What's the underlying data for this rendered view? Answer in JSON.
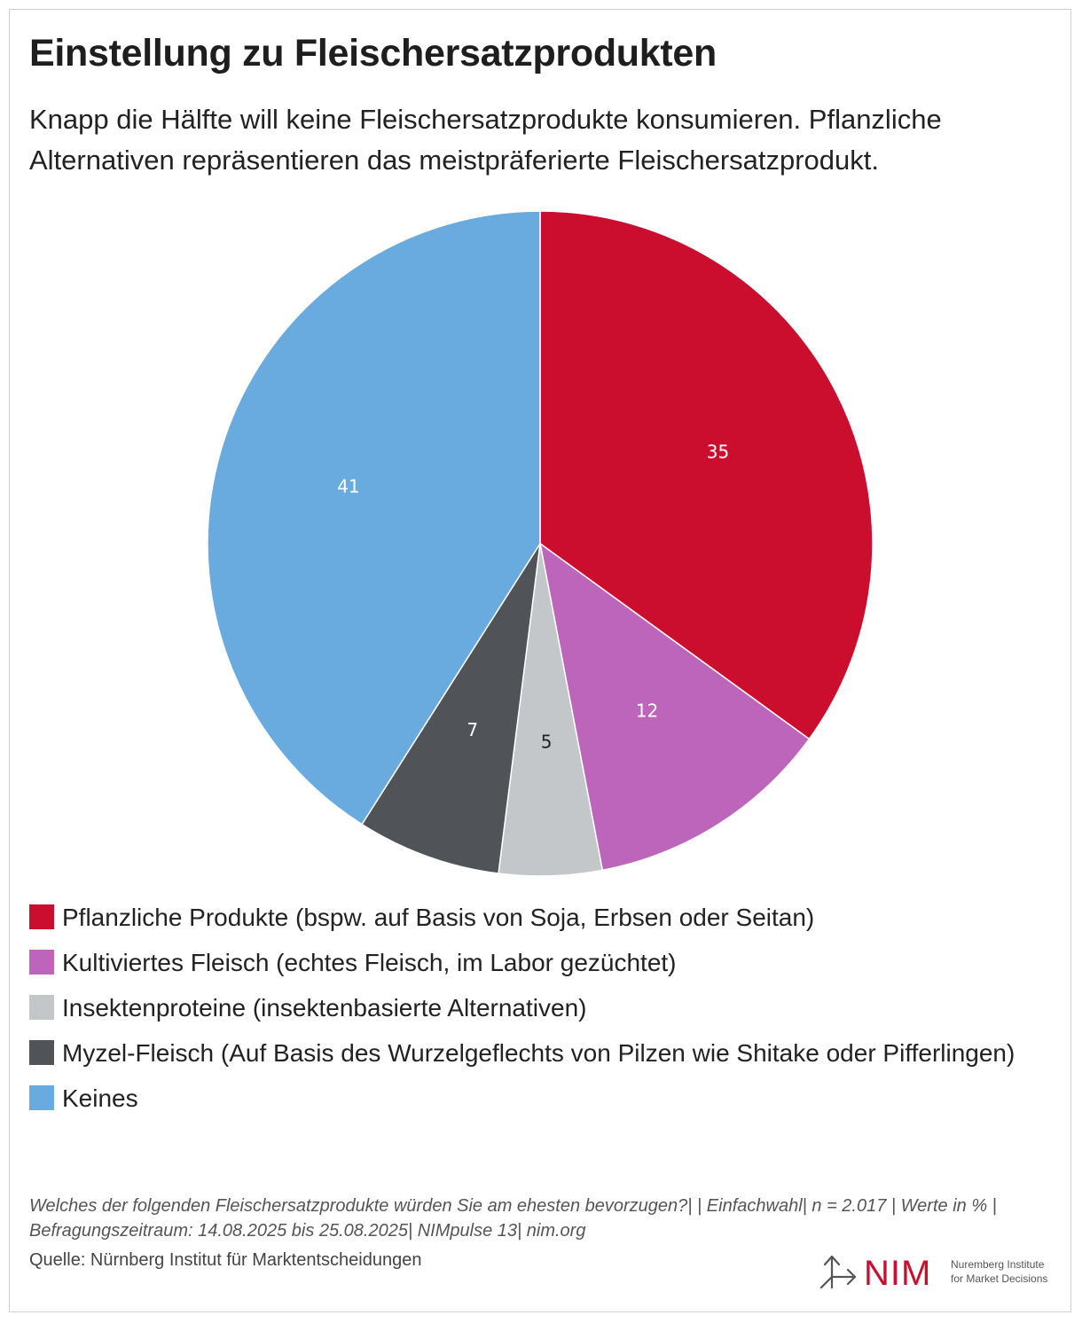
{
  "header": {
    "title": "Einstellung zu Fleischersatzprodukten",
    "subtitle": "Knapp die Hälfte will keine Fleischersatzprodukte konsumieren. Pflanzliche Alternativen repräsentieren das meistpräferierte Fleischersatzprodukt."
  },
  "chart_data": {
    "type": "pie",
    "title": "Einstellung zu Fleischersatzprodukten",
    "subtitle": "Knapp die Hälfte will keine Fleischersatzprodukte konsumieren. Pflanzliche Alternativen repräsentieren das meistpräferierte Fleischersatzprodukt.",
    "start_angle": "12 o'clock",
    "direction": "clockwise",
    "legend_position": "bottom",
    "slices": [
      {
        "label": "Pflanzliche Produkte (bspw. auf Basis von Soja, Erbsen oder Seitan)",
        "value": 35,
        "color": "#cc0e2e",
        "label_color": "#ffffff"
      },
      {
        "label": "Kultiviertes Fleisch (echtes Fleisch, im Labor gezüchtet)",
        "value": 12,
        "color": "#bd65ba",
        "label_color": "#ffffff"
      },
      {
        "label": "Insektenproteine (insektenbasierte Alternativen)",
        "value": 5,
        "color": "#c4c7c9",
        "label_color": "#222222"
      },
      {
        "label": "Myzel-Fleisch (Auf Basis des Wurzelgeflechts von Pilzen wie Shitake oder Pifferlingen)",
        "value": 7,
        "color": "#505458",
        "label_color": "#ffffff"
      },
      {
        "label": "Keines",
        "value": 41,
        "color": "#69abdf",
        "label_color": "#ffffff"
      }
    ]
  },
  "footer": {
    "note": "Welches der folgenden Fleischersatzprodukte würden Sie am ehesten bevorzugen?| | Einfachwahl| n = 2.017 | Werte in % | Befragungszeitraum: 14.08.2025 bis 25.08.2025| NIMpulse 13| nim.org",
    "source": "Quelle: Nürnberg Institut für Marktentscheidungen"
  },
  "logo": {
    "wordmark": "NIM",
    "tagline_line1": "Nuremberg Institute",
    "tagline_line2": "for Market Decisions",
    "color": "#c8102e"
  }
}
